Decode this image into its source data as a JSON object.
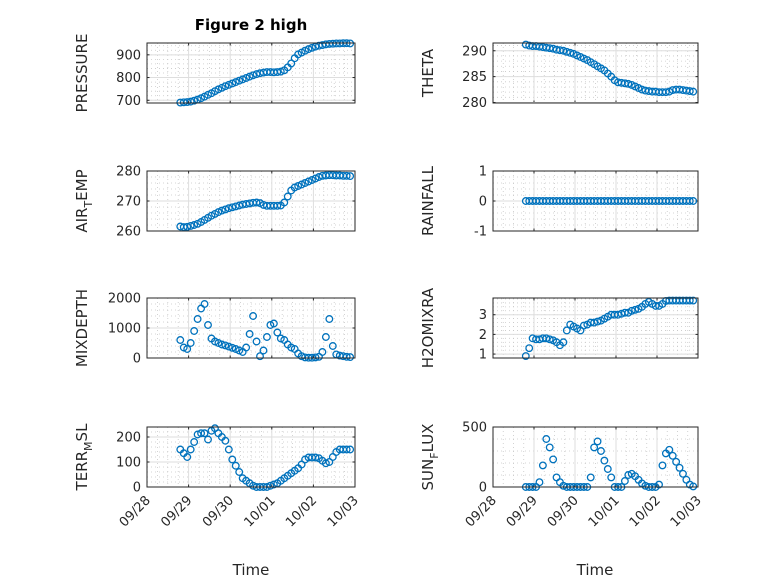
{
  "figure": {
    "title": "Figure 2 high",
    "xlabel": "Time"
  },
  "chart_data": {
    "type": "scatter",
    "title": "Figure 2 high",
    "xlabel": "Time",
    "x_tick_labels": [
      "09/28",
      "09/29",
      "09/30",
      "10/01",
      "10/02",
      "10/03"
    ],
    "x_units": "days since 09/28 00:00",
    "xlim": [
      0,
      5
    ],
    "x_start": 0.8,
    "x_step": 0.08333,
    "marker": "open circle",
    "color": "#0072BD",
    "grid": "major and minor",
    "panels": [
      {
        "ylabel": "PRESSURE",
        "ylim": [
          688,
          952
        ],
        "yticks": [
          700,
          800,
          900
        ],
        "values": [
          690,
          691,
          692,
          694,
          698,
          703,
          709,
          716,
          724,
          731,
          740,
          748,
          755,
          762,
          768,
          774,
          780,
          786,
          792,
          798,
          804,
          810,
          815,
          819,
          822,
          824,
          824,
          823,
          824,
          826,
          832,
          845,
          862,
          885,
          902,
          910,
          918,
          925,
          931,
          936,
          940,
          943,
          946,
          948,
          949,
          950,
          950,
          951,
          951,
          950
        ]
      },
      {
        "ylabel": "THETA",
        "ylim": [
          279.9,
          291.5
        ],
        "yticks": [
          280,
          285,
          290
        ],
        "values": [
          291.2,
          291,
          290.9,
          290.9,
          290.8,
          290.7,
          290.6,
          290.5,
          290.4,
          290.2,
          290.1,
          290,
          289.8,
          289.6,
          289.4,
          289.1,
          288.8,
          288.5,
          288.2,
          287.8,
          287.4,
          287,
          286.6,
          286.2,
          285.6,
          285,
          284.3,
          283.9,
          283.8,
          283.7,
          283.6,
          283.4,
          283.1,
          282.8,
          282.5,
          282.3,
          282.2,
          282.1,
          282.1,
          282.0,
          282.0,
          282.0,
          282.1,
          282.4,
          282.5,
          282.5,
          282.4,
          282.3,
          282.2,
          282.1
        ]
      },
      {
        "ylabel": "AIR_TEMP",
        "ylim": [
          260,
          280
        ],
        "yticks": [
          260,
          270,
          280
        ],
        "values": [
          261.5,
          261.3,
          261.4,
          261.7,
          262,
          262.4,
          263,
          263.7,
          264.4,
          265.1,
          265.7,
          266.3,
          266.8,
          267.2,
          267.6,
          267.9,
          268.2,
          268.5,
          268.8,
          269,
          269.2,
          269.4,
          269.5,
          269.3,
          268.7,
          268.4,
          268.4,
          268.4,
          268.4,
          268.5,
          269.5,
          271.5,
          273.5,
          274.5,
          275,
          275.5,
          276,
          276.5,
          277,
          277.5,
          278,
          278.4,
          278.5,
          278.6,
          278.6,
          278.5,
          278.5,
          278.4,
          278.4,
          278.3
        ]
      },
      {
        "ylabel": "RAINFALL",
        "ylim": [
          -1,
          1
        ],
        "yticks": [
          -1,
          0,
          1
        ],
        "values": [
          0,
          0,
          0,
          0,
          0,
          0,
          0,
          0,
          0,
          0,
          0,
          0,
          0,
          0,
          0,
          0,
          0,
          0,
          0,
          0,
          0,
          0,
          0,
          0,
          0,
          0,
          0,
          0,
          0,
          0,
          0,
          0,
          0,
          0,
          0,
          0,
          0,
          0,
          0,
          0,
          0,
          0,
          0,
          0,
          0,
          0,
          0,
          0,
          0,
          0
        ]
      },
      {
        "ylabel": "MIXDEPTH",
        "ylim": [
          0,
          2000
        ],
        "yticks": [
          0,
          1000,
          2000
        ],
        "values": [
          600,
          350,
          300,
          500,
          900,
          1300,
          1650,
          1800,
          1100,
          650,
          550,
          500,
          450,
          420,
          380,
          340,
          300,
          250,
          200,
          350,
          800,
          1400,
          550,
          60,
          250,
          700,
          1100,
          1150,
          850,
          650,
          600,
          450,
          350,
          300,
          150,
          60,
          20,
          10,
          10,
          20,
          40,
          200,
          700,
          1300,
          400,
          120,
          80,
          60,
          40,
          30
        ]
      },
      {
        "ylabel": "H2OMIXRA",
        "ylim": [
          0.8,
          3.85
        ],
        "yticks": [
          1,
          2,
          3
        ],
        "values": [
          0.9,
          1.3,
          1.8,
          1.75,
          1.75,
          1.8,
          1.8,
          1.75,
          1.7,
          1.6,
          1.45,
          1.6,
          2.2,
          2.5,
          2.4,
          2.3,
          2.2,
          2.45,
          2.5,
          2.6,
          2.6,
          2.65,
          2.7,
          2.8,
          2.9,
          3.0,
          3.0,
          3.0,
          3.05,
          3.1,
          3.1,
          3.2,
          3.25,
          3.3,
          3.4,
          3.55,
          3.65,
          3.55,
          3.45,
          3.45,
          3.55,
          3.7,
          3.72,
          3.72,
          3.72,
          3.72,
          3.72,
          3.72,
          3.72,
          3.72
        ]
      },
      {
        "ylabel": "TERR_MSL",
        "ylim": [
          0,
          240
        ],
        "yticks": [
          0,
          100,
          200
        ],
        "values": [
          150,
          135,
          120,
          150,
          180,
          210,
          215,
          215,
          190,
          225,
          235,
          215,
          200,
          185,
          150,
          110,
          85,
          60,
          35,
          25,
          15,
          5,
          0,
          0,
          0,
          0,
          5,
          10,
          15,
          25,
          35,
          45,
          55,
          65,
          75,
          90,
          110,
          118,
          118,
          118,
          115,
          105,
          95,
          100,
          120,
          140,
          150,
          150,
          150,
          150
        ]
      },
      {
        "ylabel": "SUN_FLUX",
        "ylim": [
          0,
          500
        ],
        "yticks": [
          0,
          500
        ],
        "values": [
          0,
          0,
          0,
          0,
          40,
          180,
          400,
          330,
          230,
          80,
          40,
          10,
          0,
          0,
          0,
          0,
          0,
          0,
          0,
          80,
          330,
          380,
          300,
          220,
          150,
          80,
          0,
          0,
          0,
          50,
          100,
          110,
          90,
          60,
          30,
          10,
          0,
          0,
          0,
          20,
          180,
          280,
          310,
          260,
          210,
          160,
          110,
          60,
          20,
          5
        ]
      }
    ]
  }
}
